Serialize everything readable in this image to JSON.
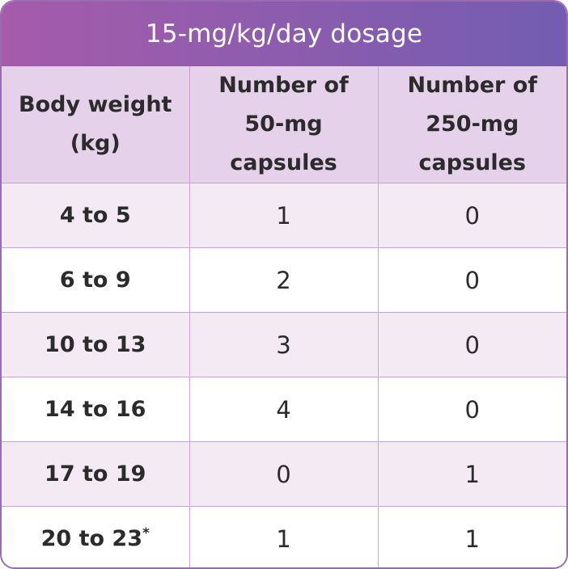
{
  "title": "15-mg/kg/day dosage",
  "headers": [
    [
      "Body weight",
      "(kg)"
    ],
    [
      "Number of",
      "50-mg",
      "capsules"
    ],
    [
      "Number of",
      "250-mg",
      "capsules"
    ]
  ],
  "rows": [
    {
      "weight": "4 to 5",
      "caps50": "1",
      "caps250": "0"
    },
    {
      "weight": "6 to 9",
      "caps50": "2",
      "caps250": "0"
    },
    {
      "weight": "10 to 13",
      "caps50": "3",
      "caps250": "0"
    },
    {
      "weight": "14 to 16",
      "caps50": "4",
      "caps250": "0"
    },
    {
      "weight": "17 to 19",
      "caps50": "0",
      "caps250": "1"
    },
    {
      "weight": "20 to 23",
      "weight_note": "*",
      "caps50": "1",
      "caps250": "1"
    }
  ],
  "colors": {
    "title_gradient_start": "#a65bab",
    "title_gradient_end": "#725db1",
    "header_bg": "#e5d1ea",
    "row_alt_bg": "#f3eaf4",
    "border": "#c9a3d2"
  }
}
